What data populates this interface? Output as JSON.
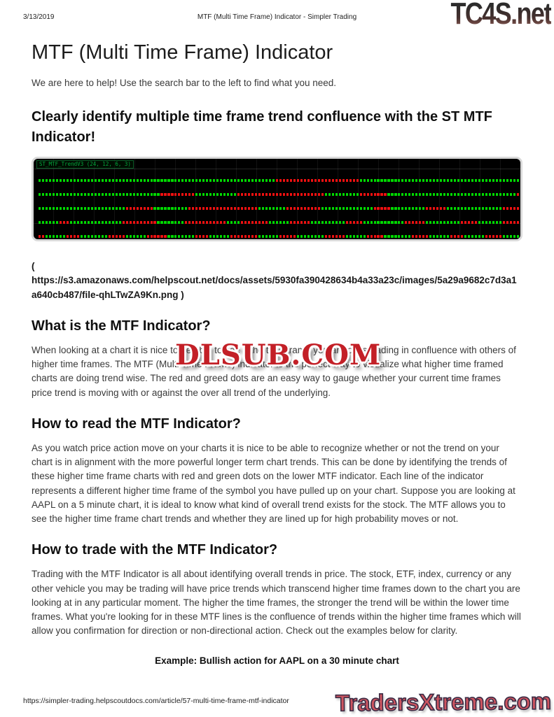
{
  "print_header": {
    "date": "3/13/2019",
    "title": "MTF (Multi Time Frame) Indicator - Simpler Trading",
    "site_logo": "TC4S.net"
  },
  "article": {
    "title": "MTF (Multi Time Frame) Indicator",
    "intro": "We are here to help! Use the search bar to the left to find what you need.",
    "headline": "Clearly identify multiple time frame trend confluence with the ST MTF Indicator!",
    "image_link": {
      "open": "(",
      "line1": "https://s3.amazonaws.com/helpscout.net/docs/assets/5930fa390428634b4a33a23c/images/5a29a9682c7d3a1",
      "line2": "a640cb487/file-qhLTwZA9Kn.png )"
    },
    "sections": [
      {
        "heading": "What is the MTF Indicator?",
        "body": "When looking at a chart it is nice to be able to see if the time frame you are on is trading in confluence with others of higher time frames. The MTF (Multi Time Frame) indicator is the perfect way to visualize what higher time framed charts are doing trend wise. The red and greed dots are an easy way to gauge whether your current time frames price trend is moving with or against the over all trend of the underlying."
      },
      {
        "heading": "How to read the MTF Indicator?",
        "body": "As you watch price action move on your charts it is nice to be able to recognize whether or not the trend on your chart is in alignment with the more powerful longer term chart trends. This can be done by identifying the trends of these higher time frame charts with red and green dots on the lower MTF indicator. Each line of the indicator represents a different higher time frame of the symbol you have pulled up on your chart. Suppose you are looking at AAPL on a 5 minute chart, it is ideal to know what kind of overall trend exists for the stock. The MTF allows you to see the higher time frame chart trends and whether they are lined up for high probability moves or not."
      },
      {
        "heading": "How to trade with the MTF Indicator?",
        "body": "Trading with the MTF Indicator is all about identifying overall trends in price. The stock, ETF, index, currency or any other vehicle you may be trading will have price trends which transcend higher time frames down to the chart you are looking at in any particular moment. The higher the time frames, the stronger the trend will be within the lower time frames. What you're looking for in these MTF lines is the confluence of trends within the higher time frames which will allow you confirmation for direction or non-directional action. Check out the examples below for clarity."
      }
    ],
    "example_caption": "Example: Bullish action for AAPL on a 30 minute chart"
  },
  "watermark": {
    "text": "DLSUB.COM",
    "color": "#c32027"
  },
  "chart_data": {
    "type": "heatmap",
    "description": "MTF multi-row trend dot indicator: 5 horizontal rows of green (uptrend) and red (downtrend) dots on black background",
    "label": "ST_MTF_TrendV3 (24, 12, 6, 3)",
    "colors": {
      "green": "#00d800",
      "red": "#ef1010",
      "background": "#000000"
    },
    "rows": [
      "g68 r24 g46",
      "g35 r10 g12 r25 g10 r8 g37 r1",
      "g25 r8 g10 r20 g8 r10 g15 r5 g10 r6 g16 r5",
      "g6 r3 g15 r10 g8 r12 g4 r8 g6 r6 g10 r5 g12 r6 g10 r5 g7 r5",
      "r2 g6 r4 g8 r5 g6 r6 g8 r4 g6 r8 g6 r5 g8 r6 g6 r5 g8 r5 g6 r4 g6 r5 g5"
    ]
  },
  "print_footer": {
    "url": "https://simpler-trading.helpscoutdocs.com/article/57-multi-time-frame-mtf-indicator",
    "site_logo": "TradersXtreme.com"
  }
}
